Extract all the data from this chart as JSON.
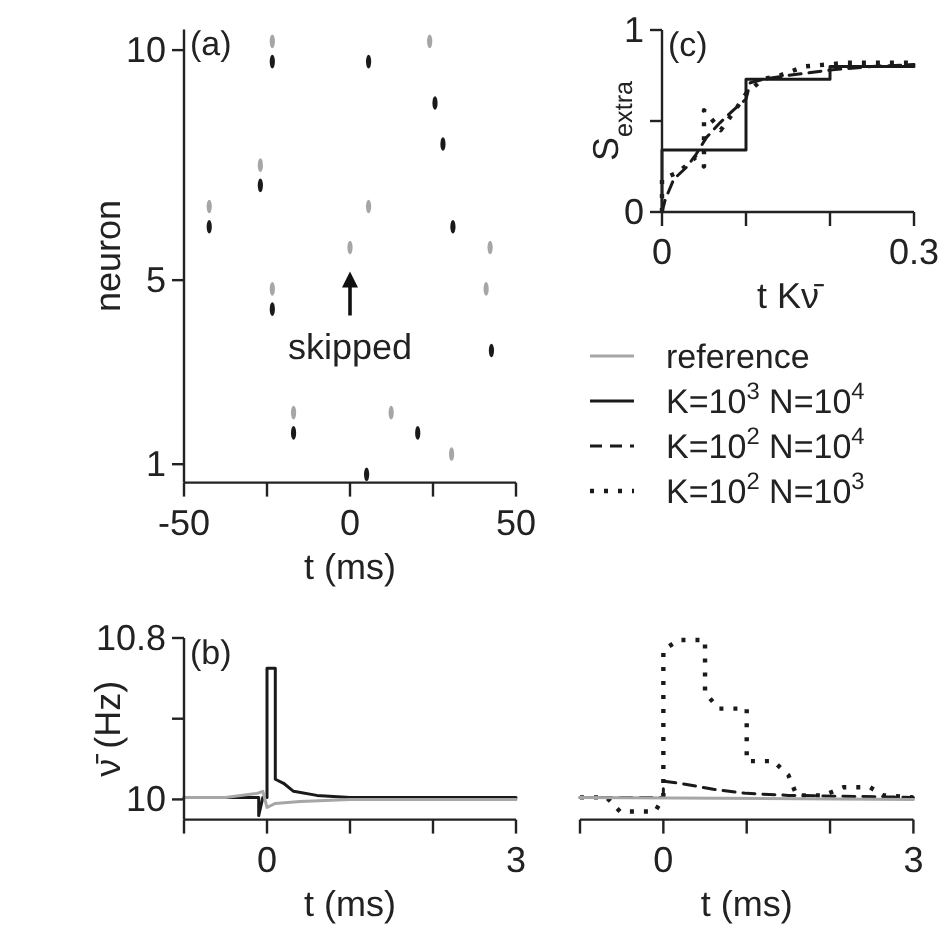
{
  "chart_data": [
    {
      "type": "scatter",
      "title": "(a)",
      "xlabel": "t (ms)",
      "ylabel": "neuron",
      "xlim": [
        -50,
        50
      ],
      "xticks": [
        -50,
        {
          "value": -25,
          "label": null
        },
        0,
        {
          "value": 25,
          "label": null
        },
        50
      ],
      "ylim": [
        0.6,
        10.45
      ],
      "yticks": [
        1,
        5,
        10
      ],
      "series": [
        {
          "name": "reference",
          "color": "#a6a6a6",
          "x": [
            -23.4,
            24,
            -27,
            -42.4,
            5.6,
            0,
            42.2,
            -23.4,
            41,
            -17,
            12.4,
            30.6
          ],
          "values": [
            10.19,
            10.19,
            7.5,
            6.6,
            6.6,
            5.71,
            5.71,
            4.81,
            4.81,
            2.12,
            2.12,
            1.22
          ]
        },
        {
          "color": "#1a1a1a",
          "x": [
            -23.4,
            5.6,
            25.6,
            28,
            -27,
            -42.4,
            31,
            -23.4,
            42.6,
            -17,
            20.4,
            5
          ],
          "values": [
            9.75,
            9.75,
            8.85,
            7.96,
            7.06,
            6.16,
            6.16,
            4.37,
            3.47,
            1.68,
            1.68,
            0.78
          ]
        }
      ],
      "annotations": [
        {
          "text": "skipped",
          "x": 0,
          "y": 5.71
        }
      ]
    },
    {
      "type": "line",
      "title": "(c)",
      "xlabel": "t Kν̄",
      "ylabel": "S$_{extra}$",
      "xlim": [
        0,
        0.3
      ],
      "xticks": [
        0,
        {
          "value": 0.1,
          "label": null
        },
        {
          "value": 0.2,
          "label": null
        },
        0.3
      ],
      "ylim": [
        0,
        1
      ],
      "yticks": [
        0,
        {
          "value": 0.5,
          "label": null
        },
        1
      ],
      "legend": "bottom",
      "series": [
        {
          "name": "K=10$^{3}$ N=10$^{4}$",
          "type": "step",
          "line_style": "solid",
          "color": "#1a1a1a",
          "x": [
            0,
            0,
            0.1,
            0.2,
            0.3
          ],
          "values": [
            0,
            0.34,
            0.73,
            0.8,
            0.8
          ]
        },
        {
          "name": "K=10$^{2}$ N=10$^{4}$",
          "line_style": "dashed",
          "color": "#1a1a1a",
          "x": [
            0,
            0.004,
            0.014,
            0.03,
            0.041,
            0.053,
            0.069,
            0.085,
            0.1,
            0.105,
            0.121,
            0.15,
            0.2,
            0.25,
            0.3
          ],
          "values": [
            0,
            0.07,
            0.18,
            0.25,
            0.32,
            0.41,
            0.49,
            0.56,
            0.62,
            0.71,
            0.73,
            0.75,
            0.78,
            0.8,
            0.81
          ]
        },
        {
          "name": "K=10$^{2}$ N=10$^{3}$",
          "line_style": "dotted",
          "color": "#1a1a1a",
          "x": [
            0,
            0,
            0.02,
            0.04,
            0.05,
            0.05,
            0.07,
            0.09,
            0.1,
            0.12,
            0.14,
            0.17,
            0.22,
            0.3
          ],
          "values": [
            0,
            0.18,
            0.22,
            0.3,
            0.25,
            0.56,
            0.45,
            0.58,
            0.65,
            0.73,
            0.75,
            0.8,
            0.82,
            0.82
          ]
        }
      ]
    },
    {
      "type": "line",
      "title": "(b)",
      "xlabel": "t (ms)",
      "ylabel": "ν̄ (Hz)",
      "xlim": [
        -1,
        3
      ],
      "xticks": [
        {
          "value": -1,
          "label": null
        },
        0,
        {
          "value": 1,
          "label": null
        },
        {
          "value": 2,
          "label": null
        },
        3
      ],
      "ylim": [
        9.9,
        10.8
      ],
      "yticks": [
        10,
        {
          "value": 10.4,
          "label": null
        },
        10.8
      ],
      "series": [
        {
          "line_style": "solid",
          "color": "#1a1a1a",
          "x": [
            -1,
            -0.1,
            -0.1,
            -0.05,
            0,
            0,
            0.1,
            0.1,
            0.2,
            0.32,
            0.6,
            1,
            3
          ],
          "values": [
            10.01,
            10.01,
            9.92,
            10.01,
            10.01,
            10.65,
            10.65,
            10.1,
            10.08,
            10.04,
            10.02,
            10.01,
            10.01
          ]
        },
        {
          "line_style": "solid",
          "color": "#a6a6a6",
          "x": [
            -1,
            -0.5,
            -0.12,
            -0.05,
            0,
            0.1,
            0.4,
            1,
            2,
            3
          ],
          "values": [
            10.01,
            10.01,
            10.03,
            10.04,
            9.96,
            9.98,
            9.99,
            10,
            10,
            10
          ]
        }
      ]
    },
    {
      "type": "line",
      "xlabel": "t (ms)",
      "xlim": [
        -1,
        3
      ],
      "xticks": [
        {
          "value": -1,
          "label": null
        },
        0,
        {
          "value": 1,
          "label": null
        },
        {
          "value": 2,
          "label": null
        },
        3
      ],
      "ylim": [
        9.9,
        10.8
      ],
      "tick_labels": "x",
      "series": [
        {
          "line_style": "dotted",
          "color": "#1a1a1a",
          "x": [
            -1,
            -0.68,
            -0.52,
            -0.1,
            0,
            0,
            0.18,
            0.5,
            0.5,
            0.66,
            1,
            1,
            1.32,
            1.5,
            1.6,
            1.92,
            2.16,
            2.48,
            2.64,
            3
          ],
          "values": [
            10.01,
            10.01,
            9.94,
            9.94,
            10.01,
            10.74,
            10.79,
            10.79,
            10.53,
            10.45,
            10.45,
            10.19,
            10.19,
            10.12,
            10.02,
            10.02,
            10.06,
            10.06,
            10.02,
            10.01
          ]
        },
        {
          "line_style": "dashed",
          "color": "#1a1a1a",
          "x": [
            -1,
            0,
            0,
            0.2,
            0.6,
            1,
            1.5,
            3
          ],
          "values": [
            10.01,
            10.01,
            10.09,
            10.08,
            10.05,
            10.03,
            10.02,
            10.01
          ]
        },
        {
          "line_style": "solid",
          "color": "#a6a6a6",
          "x": [
            -1,
            3
          ],
          "values": [
            10.01,
            10
          ]
        }
      ]
    }
  ]
}
